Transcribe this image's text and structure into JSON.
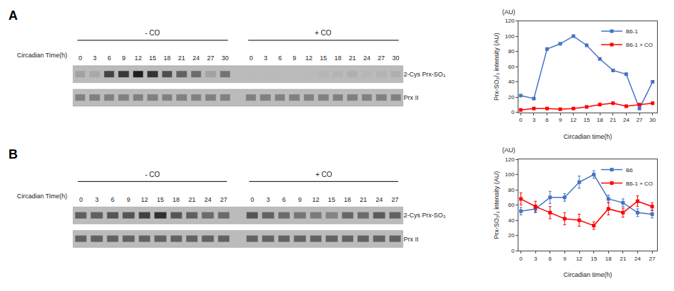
{
  "chart_data": [
    {
      "type": "heatmap",
      "title": "A",
      "xlabel": "Circadian Time(h)",
      "rows": [
        "2-Cys Prx-SO₃",
        "Prx II"
      ],
      "color": "#BBBBBB",
      "zlim": [
        0,
        1
      ],
      "groups": [
        {
          "name": "- CO",
          "categories": [
            "0",
            "3",
            "6",
            "9",
            "12",
            "15",
            "18",
            "21",
            "24",
            "27",
            "30"
          ],
          "cells": [
            [
              0.22,
              0.18,
              0.78,
              0.85,
              1.0,
              0.88,
              0.72,
              0.6,
              0.55,
              0.22,
              0.5
            ],
            [
              0.42,
              0.42,
              0.42,
              0.42,
              0.42,
              0.42,
              0.42,
              0.42,
              0.42,
              0.42,
              0.42
            ]
          ]
        },
        {
          "name": "+ CO",
          "categories": [
            "0",
            "3",
            "6",
            "9",
            "12",
            "15",
            "18",
            "21",
            "24",
            "27",
            "30"
          ],
          "cells": [
            [
              0.08,
              0.08,
              0.08,
              0.07,
              0.08,
              0.1,
              0.12,
              0.14,
              0.1,
              0.12,
              0.14
            ],
            [
              0.42,
              0.42,
              0.42,
              0.42,
              0.42,
              0.42,
              0.42,
              0.42,
              0.42,
              0.42,
              0.42
            ]
          ]
        }
      ]
    },
    {
      "type": "line",
      "xlabel": "Circadian time(h)",
      "ylabel": "Prx-SO₂/₃ intensity (AU)",
      "annotations": [
        "(AU)"
      ],
      "xlim": [
        -0.5,
        31
      ],
      "xticks": [
        0,
        3,
        6,
        9,
        12,
        15,
        18,
        21,
        24,
        27,
        30
      ],
      "ylim": [
        0,
        120
      ],
      "yticks": [
        0,
        20,
        40,
        60,
        80,
        100,
        120
      ],
      "grid": false,
      "legend": "upper right",
      "series": [
        {
          "name": "B6-1",
          "color": "#4472C4",
          "marker": "square",
          "x": [
            0,
            3,
            6,
            9,
            12,
            15,
            18,
            21,
            24,
            27,
            30
          ],
          "values": [
            22,
            18,
            83,
            90,
            100,
            88,
            70,
            55,
            50,
            5,
            40
          ]
        },
        {
          "name": "B6-1 + CO",
          "color": "#FF0000",
          "marker": "square",
          "x": [
            0,
            3,
            6,
            9,
            12,
            15,
            18,
            21,
            24,
            27,
            30
          ],
          "values": [
            3,
            5,
            5,
            4,
            5,
            7,
            10,
            12,
            8,
            10,
            12
          ]
        }
      ]
    },
    {
      "type": "heatmap",
      "title": "B",
      "xlabel": "Circadian Time(h)",
      "rows": [
        "2-Cys Prx-SO₃",
        "Prx II"
      ],
      "color": "#BBBBBB",
      "zlim": [
        0,
        1
      ],
      "groups": [
        {
          "name": "- CO",
          "categories": [
            "0",
            "3",
            "6",
            "9",
            "12",
            "15",
            "18",
            "21",
            "24",
            "27"
          ],
          "cells": [
            [
              0.62,
              0.62,
              0.68,
              0.68,
              0.8,
              0.9,
              0.68,
              0.62,
              0.55,
              0.55
            ],
            [
              0.6,
              0.6,
              0.6,
              0.6,
              0.6,
              0.6,
              0.6,
              0.6,
              0.6,
              0.6
            ]
          ]
        },
        {
          "name": "+ CO",
          "categories": [
            "0",
            "3",
            "6",
            "9",
            "12",
            "15",
            "18",
            "21",
            "24",
            "27"
          ],
          "cells": [
            [
              0.68,
              0.6,
              0.55,
              0.48,
              0.45,
              0.4,
              0.58,
              0.55,
              0.65,
              0.6
            ],
            [
              0.6,
              0.6,
              0.6,
              0.6,
              0.6,
              0.6,
              0.6,
              0.6,
              0.6,
              0.6
            ]
          ]
        }
      ]
    },
    {
      "type": "line",
      "xlabel": "Circadian time(h)",
      "ylabel": "Prx-SO₂/₃ intensity (AU)",
      "annotations": [
        "(AU)"
      ],
      "xlim": [
        -0.5,
        28
      ],
      "xticks": [
        0,
        3,
        6,
        9,
        12,
        15,
        18,
        21,
        24,
        27
      ],
      "ylim": [
        0,
        120
      ],
      "yticks": [
        0,
        20,
        40,
        60,
        80,
        100,
        120
      ],
      "grid": false,
      "legend": "upper right",
      "series": [
        {
          "name": "B6",
          "color": "#4472C4",
          "marker": "square",
          "x": [
            0,
            3,
            6,
            9,
            12,
            15,
            18,
            21,
            24,
            27
          ],
          "values": [
            52,
            55,
            70,
            70,
            90,
            100,
            68,
            63,
            50,
            48
          ],
          "errors": [
            5,
            5,
            8,
            5,
            8,
            5,
            5,
            5,
            5,
            5
          ]
        },
        {
          "name": "B6-1 + CO",
          "color": "#FF0000",
          "marker": "square",
          "x": [
            0,
            3,
            6,
            9,
            12,
            15,
            18,
            21,
            24,
            27
          ],
          "values": [
            68,
            58,
            50,
            42,
            40,
            33,
            55,
            50,
            65,
            58
          ],
          "errors": [
            8,
            7,
            8,
            8,
            8,
            5,
            8,
            6,
            7,
            5
          ]
        }
      ]
    }
  ]
}
